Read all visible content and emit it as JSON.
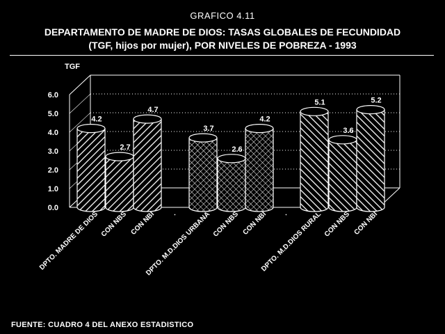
{
  "header": {
    "figure_no": "GRAFICO 4.11",
    "title_line1": "DEPARTAMENTO DE MADRE DE DIOS: TASAS GLOBALES DE FECUNDIDAD",
    "title_line2": "(TGF, hijos por mujer), POR NIVELES DE POBREZA - 1993"
  },
  "footer": {
    "source": "FUENTE: CUADRO 4  DEL ANEXO ESTADISTICO"
  },
  "chart_data": {
    "type": "bar",
    "ylabel": "TGF",
    "ylim": [
      0,
      6
    ],
    "yticks": [
      "0.0",
      "1.0",
      "2.0",
      "3.0",
      "4.0",
      "5.0",
      "6.0"
    ],
    "grid": true,
    "style": "3d-cylinders",
    "categories": [
      "DPTO. MADRE DE DIOS",
      "CON NBS",
      "CON NBI",
      ".",
      "DPTO. M.D.DIOS URBANA",
      "CON NBS",
      "CON NBI",
      ".",
      "DPTO. M.D.DIOS RURAL",
      "CON NBS",
      "CON NBI"
    ],
    "bars": [
      {
        "category": "DPTO. MADRE DE DIOS",
        "value": 4.2,
        "label": "4.2",
        "pattern": "hatch-back"
      },
      {
        "category": "CON NBS",
        "value": 2.7,
        "label": "2.7",
        "pattern": "hatch-back"
      },
      {
        "category": "CON NBI",
        "value": 4.7,
        "label": "4.7",
        "pattern": "hatch-back"
      },
      {
        "category": "DPTO. M.D.DIOS URBANA",
        "value": 3.7,
        "label": "3.7",
        "pattern": "crosshatch"
      },
      {
        "category": "CON NBS",
        "value": 2.6,
        "label": "2.6",
        "pattern": "crosshatch"
      },
      {
        "category": "CON NBI",
        "value": 4.2,
        "label": "4.2",
        "pattern": "crosshatch"
      },
      {
        "category": "DPTO. M.D.DIOS RURAL",
        "value": 5.1,
        "label": "5.1",
        "pattern": "hatch-fwd"
      },
      {
        "category": "CON NBS",
        "value": 3.6,
        "label": "3.6",
        "pattern": "hatch-fwd"
      },
      {
        "category": "CON NBI",
        "value": 5.2,
        "label": "5.2",
        "pattern": "hatch-fwd"
      }
    ]
  },
  "colors": {
    "background": "#000000",
    "foreground": "#ffffff"
  }
}
